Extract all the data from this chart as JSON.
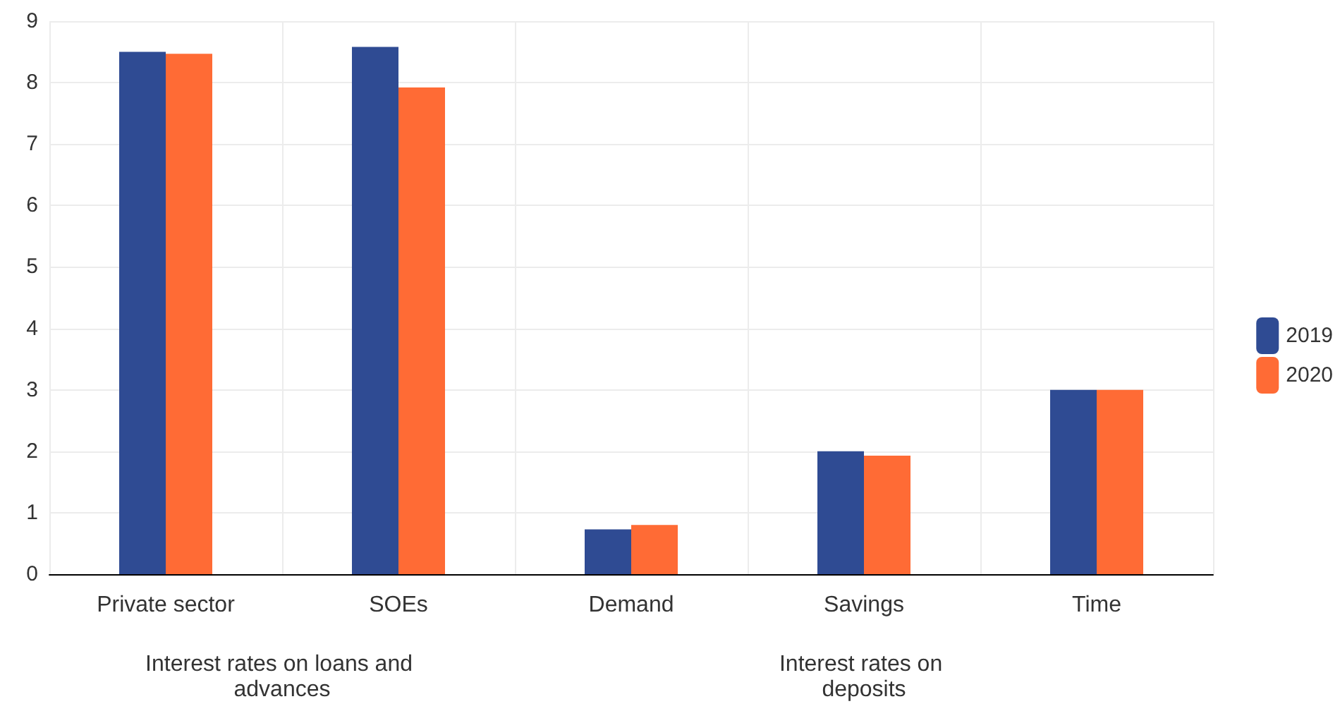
{
  "chart_data": {
    "type": "bar",
    "categories": [
      "Private sector",
      "SOEs",
      "Demand",
      "Savings",
      "Time"
    ],
    "series": [
      {
        "name": "2019",
        "color": "#2f4b93",
        "values": [
          8.5,
          8.58,
          0.73,
          2.0,
          3.0
        ]
      },
      {
        "name": "2020",
        "color": "#ff6b35",
        "values": [
          8.47,
          7.92,
          0.8,
          1.93,
          3.0
        ]
      }
    ],
    "ylim": [
      0,
      9
    ],
    "yticks": [
      0,
      1,
      2,
      3,
      4,
      5,
      6,
      7,
      8,
      9
    ],
    "grid": true,
    "legend": "right",
    "annotations": [
      "Interest rates on loans and advances",
      "Interest rates on deposits"
    ]
  }
}
